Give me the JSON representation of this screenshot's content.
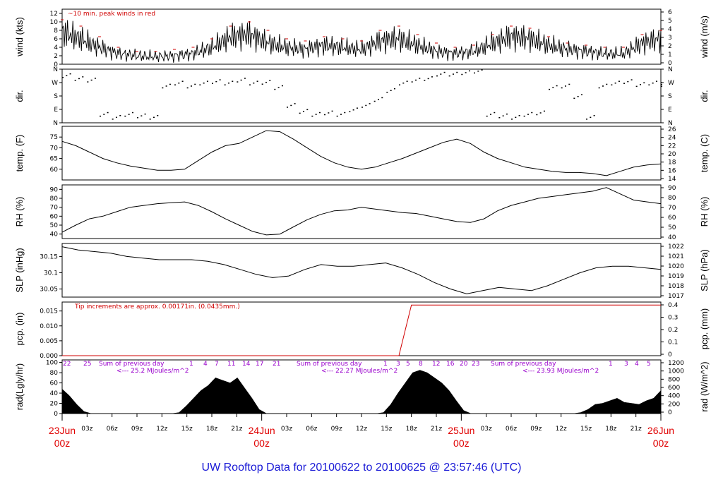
{
  "footer": "UW Rooftop Data for 20100622  to  20100625 @ 23:57:46  (UTC)",
  "colors": {
    "peak": "#d00000",
    "rain": "#d00000",
    "note": "#9900cc",
    "day": "#e00000",
    "footer": "#1a1ad6"
  },
  "hour_ticks": [
    "03z",
    "06z",
    "09z",
    "12z",
    "15z",
    "18z",
    "21z",
    "03z",
    "06z",
    "09z",
    "12z",
    "15z",
    "18z",
    "21z",
    "03z",
    "06z",
    "09z",
    "12z",
    "15z",
    "18z",
    "21z"
  ],
  "day_ticks": [
    {
      "date": "23Jun",
      "time": "00z"
    },
    {
      "date": "24Jun",
      "time": "00z"
    },
    {
      "date": "25Jun",
      "time": "00z"
    },
    {
      "date": "26Jun",
      "time": "00z"
    }
  ],
  "chart_data": [
    {
      "type": "line",
      "id": "wind",
      "ylabel": "wind (kts)",
      "ylabel_right": "wind (m/s)",
      "annotation": "~10 min. peak winds in red",
      "yticks": [
        0,
        2,
        4,
        6,
        8,
        10,
        12
      ],
      "yticks_right": [
        0,
        1,
        2,
        3,
        4,
        5,
        6
      ],
      "ylim": [
        0,
        13
      ],
      "series": [
        {
          "values": [
            7.5,
            6,
            4,
            2.5,
            2,
            1.8,
            2,
            2.5,
            4,
            6.5,
            7,
            5,
            4,
            3.5,
            4.5,
            4,
            3.5,
            5.5,
            6,
            4.5,
            3,
            2.5,
            3,
            5,
            6.5,
            6,
            4.5,
            3.5,
            3,
            2.5,
            2.5,
            5,
            6
          ]
        },
        {
          "values": [
            10.5,
            9,
            6.5,
            4,
            3,
            3,
            3.5,
            4,
            6,
            9,
            10,
            8,
            6,
            5.5,
            6.5,
            6,
            5.5,
            8,
            9,
            7,
            5,
            4,
            4.5,
            7,
            9,
            8.5,
            6.5,
            5,
            4.5,
            4,
            4,
            7,
            8
          ]
        }
      ]
    },
    {
      "type": "scatter",
      "id": "dir",
      "ylabel": "dir.",
      "ylabel_right": "dir.",
      "yticks": [
        "N",
        "E",
        "S",
        "W",
        "N"
      ],
      "ylim": [
        0,
        360
      ],
      "x": [
        0,
        2,
        4,
        6,
        8,
        10,
        12,
        14,
        16,
        18,
        20,
        22,
        24,
        26,
        28,
        30,
        32,
        34,
        36,
        38,
        40,
        42,
        44,
        46,
        48,
        50,
        52,
        54,
        56,
        58,
        60,
        62,
        64,
        66,
        68,
        70,
        72,
        74,
        76,
        78,
        80,
        82,
        84,
        86,
        88,
        90,
        92,
        94,
        96
      ],
      "values": [
        320,
        300,
        290,
        60,
        40,
        60,
        50,
        40,
        250,
        270,
        250,
        270,
        280,
        270,
        290,
        270,
        275,
        240,
        120,
        80,
        60,
        70,
        60,
        90,
        120,
        160,
        220,
        270,
        290,
        300,
        330,
        330,
        340,
        350,
        60,
        50,
        40,
        60,
        70,
        240,
        250,
        180,
        40,
        250,
        270,
        280,
        260,
        270,
        260
      ]
    },
    {
      "type": "line",
      "id": "temp",
      "ylabel": "temp. (F)",
      "ylabel_right": "temp. (C)",
      "yticks": [
        60,
        65,
        70,
        75
      ],
      "yticks_right": [
        14,
        16,
        18,
        20,
        22,
        24,
        26
      ],
      "ylim": [
        55,
        80
      ],
      "values": [
        73,
        71,
        68,
        65,
        63,
        61.5,
        60.5,
        59.5,
        59.5,
        60,
        64,
        68,
        71,
        72,
        75,
        78,
        77.5,
        74,
        70,
        66,
        63,
        61,
        60,
        61,
        63,
        65,
        67.5,
        70,
        72.5,
        74,
        72,
        68,
        65,
        63,
        61,
        60,
        59,
        58.5,
        58.5,
        58,
        57,
        59,
        61,
        62,
        62.5
      ]
    },
    {
      "type": "line",
      "id": "rh",
      "ylabel": "RH (%)",
      "ylabel_right": "RH (%)",
      "yticks": [
        40,
        50,
        60,
        70,
        80,
        90
      ],
      "yticks_right": [
        40,
        50,
        60,
        70,
        80,
        90
      ],
      "ylim": [
        35,
        95
      ],
      "values": [
        42,
        50,
        57,
        60,
        65,
        70,
        72,
        74,
        75,
        76,
        72,
        65,
        57,
        50,
        43,
        39,
        40,
        48,
        56,
        62,
        66,
        67,
        70,
        68,
        66,
        64,
        63,
        60,
        57,
        54,
        53,
        57,
        66,
        72,
        76,
        80,
        82,
        84,
        86,
        88,
        92,
        85,
        78,
        76,
        74
      ]
    },
    {
      "type": "line",
      "id": "slp",
      "ylabel": "SLP (inHg)",
      "ylabel_right": "SLP (hPa)",
      "yticks": [
        30.05,
        30.1,
        30.15
      ],
      "yticks_right": [
        1017,
        1018,
        1019,
        1020,
        1021,
        1022
      ],
      "ylim": [
        30.025,
        30.19
      ],
      "values": [
        30.18,
        30.17,
        30.165,
        30.16,
        30.15,
        30.145,
        30.14,
        30.14,
        30.14,
        30.135,
        30.125,
        30.11,
        30.095,
        30.085,
        30.09,
        30.11,
        30.125,
        30.12,
        30.12,
        30.125,
        30.13,
        30.115,
        30.095,
        30.07,
        30.05,
        30.035,
        30.045,
        30.055,
        30.05,
        30.045,
        30.06,
        30.08,
        30.1,
        30.115,
        30.12,
        30.12,
        30.115,
        30.11
      ]
    },
    {
      "type": "line",
      "id": "pcp",
      "ylabel": "pcp. (in)",
      "ylabel_right": "pcp. (mm)",
      "annotation": "Tip increments are approx. 0.00171in. (0.0435mm.)",
      "yticks": [
        "0.000",
        "0.005",
        "0.010",
        "0.015"
      ],
      "yticks_right": [
        "0",
        "0.1",
        "0.2",
        "0.3",
        "0.4"
      ],
      "ylim": [
        0,
        0.018
      ],
      "x": [
        0,
        54,
        56,
        96
      ],
      "values": [
        0,
        0,
        0.017,
        0.017
      ]
    },
    {
      "type": "area",
      "id": "rad",
      "ylabel": "rad(Lgly/hr)",
      "ylabel_right": "rad (W/m^2)",
      "yticks": [
        0,
        20,
        40,
        60,
        80,
        100
      ],
      "yticks_right": [
        0,
        200,
        400,
        600,
        800,
        1000,
        1200
      ],
      "ylim": [
        0,
        105
      ],
      "values": [
        48,
        35,
        18,
        4,
        0,
        0,
        0,
        0,
        0,
        0,
        0,
        0,
        0,
        0,
        0,
        0,
        2,
        15,
        30,
        45,
        55,
        70,
        65,
        60,
        70,
        50,
        30,
        8,
        0,
        0,
        0,
        0,
        0,
        0,
        0,
        0,
        0,
        0,
        0,
        0,
        0,
        0,
        0,
        0,
        2,
        18,
        40,
        60,
        80,
        85,
        80,
        70,
        60,
        45,
        25,
        6,
        0,
        0,
        0,
        0,
        0,
        0,
        0,
        0,
        0,
        0,
        0,
        0,
        0,
        0,
        0,
        2,
        8,
        18,
        20,
        25,
        30,
        22,
        20,
        18,
        25,
        30,
        45
      ],
      "annotations": [
        {
          "text": "Sum of previous day"
        },
        {
          "text": "<--- 25.2 MJoules/m^2"
        },
        {
          "text": "Sum of previous day"
        },
        {
          "text": "<--- 22.27 MJoules/m^2"
        },
        {
          "text": "Sum of previous day"
        },
        {
          "text": "<--- 23.93 MJoules/m^2"
        }
      ],
      "hour_labels": [
        "22",
        "25",
        "1",
        "4",
        "7",
        "11",
        "14",
        "17",
        "21",
        "1",
        "3",
        "5",
        "8",
        "12",
        "16",
        "20",
        "23",
        "1",
        "3",
        "4",
        "5"
      ]
    }
  ]
}
